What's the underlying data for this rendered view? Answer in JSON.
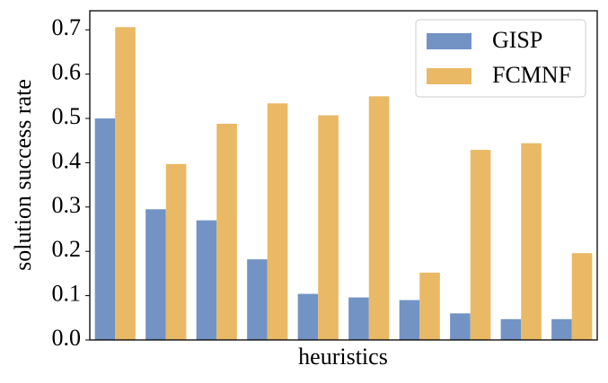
{
  "chart_data": {
    "type": "bar",
    "xlabel": "heuristics",
    "ylabel": "solution success rate",
    "categories": [
      null,
      null,
      null,
      null,
      null,
      null,
      null,
      null,
      null,
      null
    ],
    "series": [
      {
        "name": "GISP",
        "color": "#7393c4",
        "values": [
          0.5,
          0.295,
          0.27,
          0.182,
          0.104,
          0.096,
          0.09,
          0.06,
          0.047,
          0.047
        ]
      },
      {
        "name": "FCMNF",
        "color": "#e9b966",
        "values": [
          0.706,
          0.397,
          0.488,
          0.534,
          0.507,
          0.55,
          0.152,
          0.429,
          0.444,
          0.196
        ]
      }
    ],
    "ylim": [
      0,
      0.743
    ],
    "yticks": [
      {
        "value": 0,
        "label": "0.0"
      },
      0.1,
      0.2,
      0.3,
      0.4,
      0.5,
      0.6,
      0.7
    ],
    "legend": "upper right"
  }
}
